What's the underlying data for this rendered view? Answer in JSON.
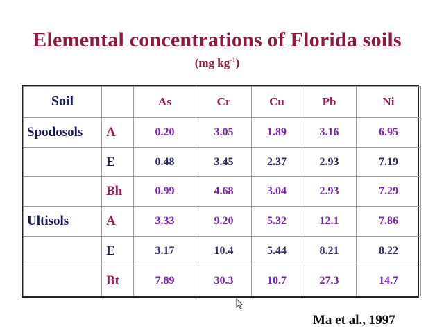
{
  "title": "Elemental concentrations of Florida soils",
  "subtitle": {
    "main": "(mg kg",
    "sup": "-1",
    "close": ")"
  },
  "table": {
    "header": {
      "soil": "Soil",
      "horizon": "",
      "elements": [
        "As",
        "Cr",
        "Cu",
        "Pb",
        "Ni"
      ]
    },
    "rows": [
      {
        "soil": "Spodosols",
        "horizon": "A",
        "values": [
          "0.20",
          "3.05",
          "1.89",
          "3.16",
          "6.95"
        ]
      },
      {
        "soil": "",
        "horizon": "E",
        "values": [
          "0.48",
          "3.45",
          "2.37",
          "2.93",
          "7.19"
        ]
      },
      {
        "soil": "",
        "horizon": "Bh",
        "values": [
          "0.99",
          "4.68",
          "3.04",
          "2.93",
          "7.29"
        ]
      },
      {
        "soil": "Ultisols",
        "horizon": "A",
        "values": [
          "3.33",
          "9.20",
          "5.32",
          "12.1",
          "7.86"
        ]
      },
      {
        "soil": "",
        "horizon": "E",
        "values": [
          "3.17",
          "10.4",
          "5.44",
          "8.21",
          "8.22"
        ]
      },
      {
        "soil": "",
        "horizon": "Bt",
        "values": [
          "7.89",
          "30.3",
          "10.7",
          "27.3",
          "14.7"
        ]
      }
    ]
  },
  "citation": "Ma et al., 1997",
  "colors": {
    "title": "#8b1a3e",
    "horizon": "#9c1d59",
    "soil": "#1a1a5a",
    "values_purple": "#7a22b0",
    "values_dark": "#2a2a6a"
  },
  "icons": {
    "cursor": "mouse-pointer-icon"
  }
}
